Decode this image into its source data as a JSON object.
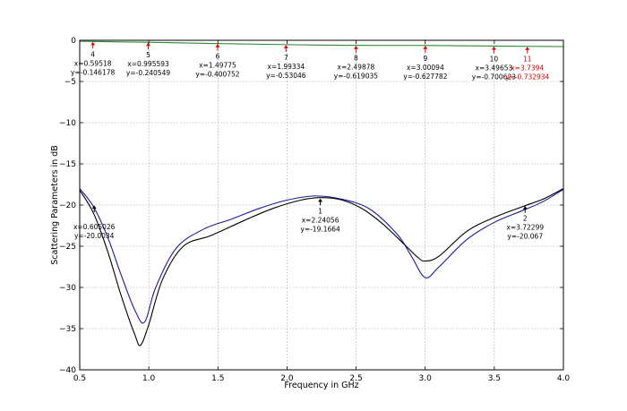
{
  "chart_data": {
    "type": "line",
    "xlabel": "Frequency in GHz",
    "ylabel": "Scattering Parameters in dB",
    "xlim": [
      0.5,
      4.0
    ],
    "ylim": [
      -40,
      0
    ],
    "xticks": [
      "0.5",
      "1.0",
      "1.5",
      "2.0",
      "2.5",
      "3.0",
      "3.5",
      "4.0"
    ],
    "yticks": [
      "0",
      "−5",
      "−10",
      "−15",
      "−20",
      "−25",
      "−30",
      "−35",
      "−40"
    ],
    "grid": true,
    "colors": {
      "green": "#2e8b2e",
      "blue": "#1a1aa6",
      "black": "#000000",
      "marker_red": "#e00000"
    },
    "series": [
      {
        "color": "#2e8b2e",
        "x": [
          0.5,
          0.6,
          1.0,
          1.5,
          2.0,
          2.5,
          3.0,
          3.5,
          3.74,
          4.0
        ],
        "y": [
          -0.12,
          -0.146,
          -0.24,
          -0.4,
          -0.53,
          -0.62,
          -0.628,
          -0.7,
          -0.733,
          -0.76
        ]
      },
      {
        "color": "#1a1aa6",
        "x": [
          0.5,
          0.6,
          0.7,
          0.8,
          0.9,
          0.97,
          1.05,
          1.2,
          1.4,
          1.6,
          1.8,
          2.0,
          2.2,
          2.4,
          2.6,
          2.8,
          2.9,
          3.0,
          3.1,
          3.3,
          3.5,
          3.7,
          3.85,
          4.0
        ],
        "y": [
          -18.0,
          -20.2,
          -23.8,
          -28.5,
          -32.8,
          -34.2,
          -30.0,
          -25.2,
          -22.9,
          -21.7,
          -20.4,
          -19.4,
          -18.9,
          -19.3,
          -20.5,
          -23.6,
          -26.2,
          -28.8,
          -27.5,
          -24.2,
          -22.1,
          -20.7,
          -19.6,
          -18.1
        ]
      },
      {
        "color": "#000000",
        "x": [
          0.5,
          0.6,
          0.7,
          0.8,
          0.9,
          0.94,
          1.0,
          1.1,
          1.25,
          1.45,
          1.7,
          1.9,
          2.1,
          2.25,
          2.4,
          2.55,
          2.7,
          2.85,
          2.95,
          3.0,
          3.1,
          3.3,
          3.5,
          3.72,
          3.85,
          4.0
        ],
        "y": [
          -18.2,
          -21.0,
          -25.5,
          -31.0,
          -35.8,
          -37.0,
          -34.5,
          -29.0,
          -25.0,
          -23.7,
          -21.8,
          -20.4,
          -19.4,
          -19.1,
          -19.4,
          -20.5,
          -22.4,
          -24.8,
          -26.4,
          -26.8,
          -26.2,
          -23.2,
          -21.5,
          -20.1,
          -19.3,
          -18.0
        ]
      }
    ],
    "markers": [
      {
        "id": "4",
        "x": 0.595,
        "y": -0.146,
        "lx": "x=0.59518",
        "ly": "y=-0.146178",
        "red": false
      },
      {
        "id": "5",
        "x": 0.996,
        "y": -0.241,
        "lx": "x=0.995593",
        "ly": "y=-0.240549",
        "red": false
      },
      {
        "id": "6",
        "x": 1.498,
        "y": -0.401,
        "lx": "x=1.49775",
        "ly": "y=-0.400752",
        "red": false
      },
      {
        "id": "7",
        "x": 1.993,
        "y": -0.53,
        "lx": "x=1.99334",
        "ly": "y=-0.53046",
        "red": false
      },
      {
        "id": "8",
        "x": 2.499,
        "y": -0.619,
        "lx": "x=2.49878",
        "ly": "y=-0.619035",
        "red": false
      },
      {
        "id": "9",
        "x": 3.001,
        "y": -0.628,
        "lx": "x=3.00094",
        "ly": "y=-0.627782",
        "red": false
      },
      {
        "id": "10",
        "x": 3.497,
        "y": -0.701,
        "lx": "x=3.49653",
        "ly": "y=-0.700623",
        "red": false
      },
      {
        "id": "11",
        "x": 3.739,
        "y": -0.733,
        "lx": "x=3.7394",
        "ly": "y=-0.732934",
        "red": true
      }
    ],
    "low_markers": [
      {
        "id": "",
        "x": 0.605,
        "y": -20.0,
        "lx": "x=0.605026",
        "ly": "y=-20.0034"
      },
      {
        "id": "1",
        "x": 2.241,
        "y": -19.17,
        "lx": "x=2.24056",
        "ly": "y=-19.1664"
      },
      {
        "id": "2",
        "x": 3.723,
        "y": -20.07,
        "lx": "x=3.72299",
        "ly": "y=-20.067"
      }
    ]
  }
}
